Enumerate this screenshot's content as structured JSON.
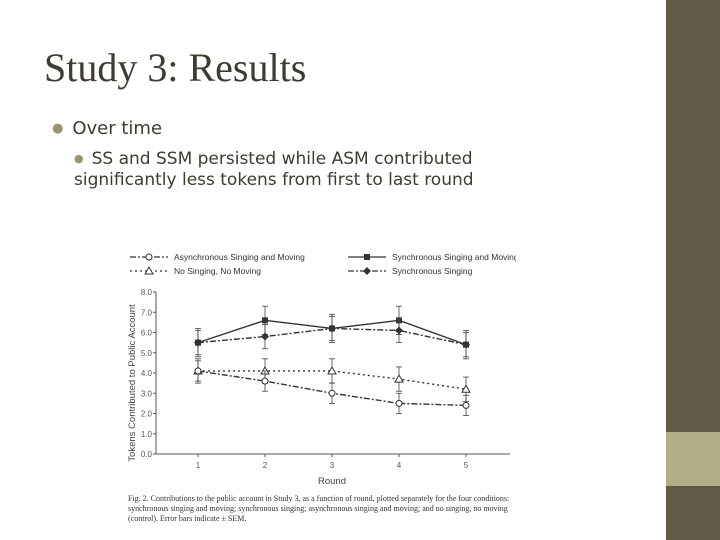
{
  "slide": {
    "title": "Study 3: Results",
    "bullet1": "Over time",
    "bullet2": "SS and SSM persisted while ASM contributed significantly less tokens from first to last round"
  },
  "colors": {
    "sidebar": "#5f5a45",
    "accent": "#b3ad8a",
    "bullet": "#9a946c",
    "text": "#3e3b30"
  },
  "chart_data": {
    "type": "line",
    "title": "",
    "xlabel": "Round",
    "ylabel": "Tokens Contributed to Public Account",
    "x": [
      1,
      2,
      3,
      4,
      5
    ],
    "y_ticks": [
      "0.0",
      "1.0",
      "2.0",
      "3.0",
      "4.0",
      "5.0",
      "6.0",
      "7.0",
      "8.0"
    ],
    "ylim": [
      0,
      8
    ],
    "legend": [
      {
        "name": "Asynchronous Singing and Moving",
        "marker": "circle-open",
        "dash": "dashdot"
      },
      {
        "name": "Synchronous Singing and Moving",
        "marker": "square",
        "dash": "solid"
      },
      {
        "name": "No Singing, No Moving",
        "marker": "triangle-open",
        "dash": "dotted"
      },
      {
        "name": "Synchronous Singing",
        "marker": "diamond",
        "dash": "dashdot"
      }
    ],
    "series": [
      {
        "name": "Synchronous Singing and Moving",
        "values": [
          5.5,
          6.6,
          6.2,
          6.6,
          5.4
        ],
        "err": [
          0.7,
          0.7,
          0.7,
          0.7,
          0.7
        ]
      },
      {
        "name": "Synchronous Singing",
        "values": [
          5.5,
          5.8,
          6.2,
          6.1,
          5.4
        ],
        "err": [
          0.6,
          0.6,
          0.6,
          0.6,
          0.6
        ]
      },
      {
        "name": "No Singing, No Moving",
        "values": [
          4.1,
          4.1,
          4.1,
          3.7,
          3.2
        ],
        "err": [
          0.6,
          0.6,
          0.6,
          0.6,
          0.6
        ]
      },
      {
        "name": "Asynchronous Singing and Moving",
        "values": [
          4.1,
          3.6,
          3.0,
          2.5,
          2.4
        ],
        "err": [
          0.5,
          0.5,
          0.5,
          0.5,
          0.5
        ]
      }
    ],
    "caption": "Fig. 2. Contributions to the public account in Study 3, as a function of round, plotted separately for the four conditions: synchronous singing and moving; synchronous singing; asynchronous singing and moving; and no singing, no moving (control). Error bars indicate ± SEM."
  }
}
